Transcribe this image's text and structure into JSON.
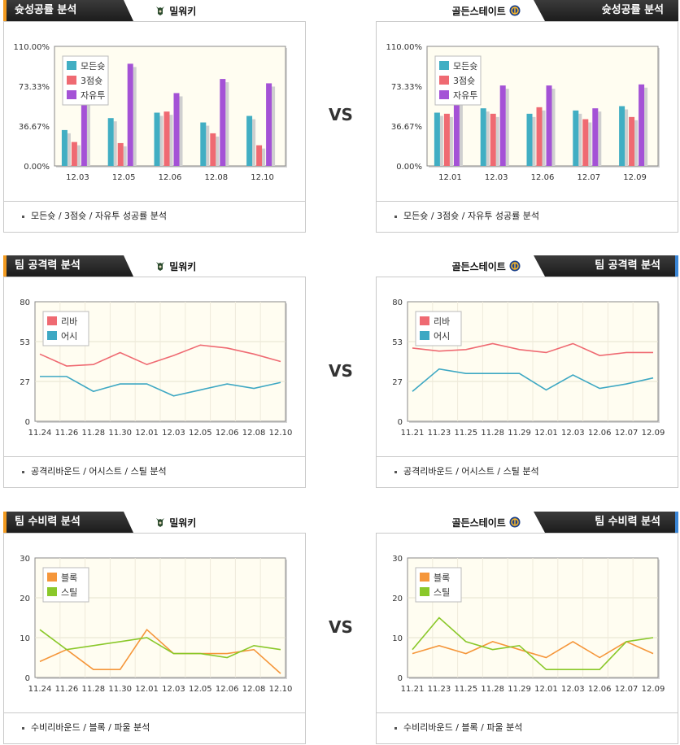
{
  "vs_label": "VS",
  "teams": {
    "left": "밀워키",
    "right": "골든스테이트"
  },
  "icons": {
    "left": "milwaukee-bucks-logo-icon",
    "right": "golden-state-warriors-logo-icon"
  },
  "colors": {
    "bar_all": "#41aec3",
    "bar_3pt": "#ef6a72",
    "bar_ft": "#a452d6",
    "line_reb": "#ef6a72",
    "line_ast": "#3ea8c3",
    "line_blk": "#f5963a",
    "line_stl": "#8ac82a",
    "left_accent": "#f29a1f",
    "right_accent": "#3a86d6"
  },
  "sections": [
    {
      "title": "슛성공률 분석",
      "caption": "모든슛 / 3점슛 / 자유투 성공률 분석"
    },
    {
      "title": "팀 공격력 분석",
      "caption": "공격리바운드 / 어시스트 / 스틸 분석"
    },
    {
      "title": "팀 수비력 분석",
      "caption": "수비리바운드 / 블록 / 파울 분석"
    }
  ],
  "chart_data": [
    {
      "id": "shoot-left",
      "type": "bar",
      "categories": [
        "12.03",
        "12.05",
        "12.06",
        "12.08",
        "12.10"
      ],
      "ylim": [
        0,
        110
      ],
      "yticks": [
        "0.00%",
        "36.67%",
        "73.33%",
        "110.00%"
      ],
      "grid": false,
      "legend": "top-left",
      "series": [
        {
          "name": "모든슛",
          "values": [
            33,
            44,
            49,
            40,
            46
          ],
          "color": "#41aec3"
        },
        {
          "name": "3점슛",
          "values": [
            22,
            21,
            50,
            30,
            19
          ],
          "color": "#ef6a72"
        },
        {
          "name": "자유투",
          "values": [
            65,
            94,
            67,
            80,
            76
          ],
          "color": "#a452d6"
        }
      ]
    },
    {
      "id": "shoot-right",
      "type": "bar",
      "categories": [
        "12.01",
        "12.03",
        "12.06",
        "12.07",
        "12.09"
      ],
      "ylim": [
        0,
        110
      ],
      "yticks": [
        "0.00%",
        "36.67%",
        "73.33%",
        "110.00%"
      ],
      "grid": false,
      "legend": "top-left",
      "series": [
        {
          "name": "모든슛",
          "values": [
            49,
            53,
            48,
            51,
            55
          ],
          "color": "#41aec3"
        },
        {
          "name": "3점슛",
          "values": [
            48,
            48,
            54,
            43,
            45
          ],
          "color": "#ef6a72"
        },
        {
          "name": "자유투",
          "values": [
            59,
            74,
            74,
            53,
            75
          ],
          "color": "#a452d6"
        }
      ]
    },
    {
      "id": "offense-left",
      "type": "line",
      "categories": [
        "11.24",
        "11.26",
        "11.28",
        "11.30",
        "12.01",
        "12.03",
        "12.05",
        "12.06",
        "12.08",
        "12.10"
      ],
      "ylim": [
        0,
        80
      ],
      "yticks": [
        "0",
        "27",
        "53",
        "80"
      ],
      "grid": true,
      "legend": "top-left",
      "series": [
        {
          "name": "리바",
          "values": [
            45,
            37,
            38,
            46,
            38,
            44,
            51,
            49,
            45,
            40
          ],
          "color": "#ef6a72"
        },
        {
          "name": "어시",
          "values": [
            30,
            30,
            20,
            25,
            25,
            17,
            21,
            25,
            22,
            26
          ],
          "color": "#3ea8c3"
        }
      ]
    },
    {
      "id": "offense-right",
      "type": "line",
      "categories": [
        "11.21",
        "11.23",
        "11.25",
        "11.28",
        "11.29",
        "12.01",
        "12.03",
        "12.06",
        "12.07",
        "12.09"
      ],
      "ylim": [
        0,
        80
      ],
      "yticks": [
        "0",
        "27",
        "53",
        "80"
      ],
      "grid": true,
      "legend": "top-left",
      "series": [
        {
          "name": "리바",
          "values": [
            49,
            47,
            48,
            52,
            48,
            46,
            52,
            44,
            46,
            46
          ],
          "color": "#ef6a72"
        },
        {
          "name": "어시",
          "values": [
            20,
            35,
            32,
            32,
            32,
            21,
            31,
            22,
            25,
            29
          ],
          "color": "#3ea8c3"
        }
      ]
    },
    {
      "id": "defense-left",
      "type": "line",
      "categories": [
        "11.24",
        "11.26",
        "11.28",
        "11.30",
        "12.01",
        "12.03",
        "12.05",
        "12.06",
        "12.08",
        "12.10"
      ],
      "ylim": [
        0,
        30
      ],
      "yticks": [
        "0",
        "10",
        "20",
        "30"
      ],
      "grid": true,
      "legend": "top-left",
      "series": [
        {
          "name": "블록",
          "values": [
            4,
            7,
            2,
            2,
            12,
            6,
            6,
            6,
            7,
            1
          ],
          "color": "#f5963a"
        },
        {
          "name": "스틸",
          "values": [
            12,
            7,
            8,
            9,
            10,
            6,
            6,
            5,
            8,
            7
          ],
          "color": "#8ac82a"
        }
      ]
    },
    {
      "id": "defense-right",
      "type": "line",
      "categories": [
        "11.21",
        "11.23",
        "11.25",
        "11.28",
        "11.29",
        "12.01",
        "12.03",
        "12.06",
        "12.07",
        "12.09"
      ],
      "ylim": [
        0,
        30
      ],
      "yticks": [
        "0",
        "10",
        "20",
        "30"
      ],
      "grid": true,
      "legend": "top-left",
      "series": [
        {
          "name": "블록",
          "values": [
            6,
            8,
            6,
            9,
            7,
            5,
            9,
            5,
            9,
            6
          ],
          "color": "#f5963a"
        },
        {
          "name": "스틸",
          "values": [
            7,
            15,
            9,
            7,
            8,
            2,
            2,
            2,
            9,
            10
          ],
          "color": "#8ac82a"
        }
      ]
    }
  ]
}
